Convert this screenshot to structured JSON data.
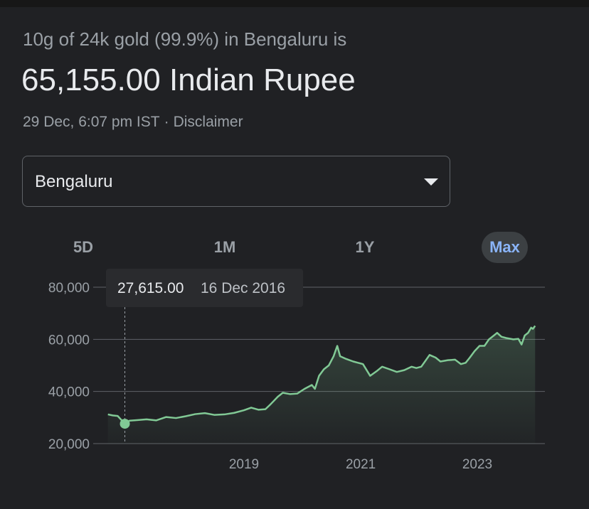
{
  "header": {
    "subtitle": "10g of 24k gold (99.9%) in Bengaluru is",
    "price": "65,155.00 Indian Rupee",
    "timestamp": "29 Dec, 6:07 pm IST",
    "separator": "·",
    "disclaimer": "Disclaimer"
  },
  "location_select": {
    "value": "Bengaluru",
    "icon": "caret-down-icon"
  },
  "range_tabs": [
    {
      "label": "5D",
      "active": false
    },
    {
      "label": "1M",
      "active": false
    },
    {
      "label": "1Y",
      "active": false
    },
    {
      "label": "Max",
      "active": true
    }
  ],
  "tooltip": {
    "value": "27,615.00",
    "date": "16 Dec 2016"
  },
  "colors": {
    "background": "#202124",
    "line": "#81c995",
    "accent": "#8ab4f8",
    "grid": "#5f6368"
  },
  "chart_data": {
    "type": "area",
    "title": "",
    "xlabel": "",
    "ylabel": "",
    "ylim": [
      20000,
      80000
    ],
    "yticks": [
      20000,
      40000,
      60000,
      80000
    ],
    "ytick_labels": [
      "20,000",
      "40,000",
      "60,000",
      "80,000"
    ],
    "xticks": [
      2019,
      2021,
      2023
    ],
    "xtick_labels": [
      "2019",
      "2021",
      "2023"
    ],
    "grid": true,
    "highlight": {
      "x": "2016-12-16",
      "y": 27615
    },
    "series": [
      {
        "points": [
          [
            "2016-09-01",
            31200
          ],
          [
            "2016-10-01",
            30800
          ],
          [
            "2016-11-01",
            30600
          ],
          [
            "2016-12-16",
            27615
          ],
          [
            "2017-01-15",
            28800
          ],
          [
            "2017-03-01",
            29000
          ],
          [
            "2017-05-01",
            29300
          ],
          [
            "2017-07-01",
            28900
          ],
          [
            "2017-09-01",
            30200
          ],
          [
            "2017-11-01",
            29800
          ],
          [
            "2018-01-01",
            30500
          ],
          [
            "2018-03-01",
            31300
          ],
          [
            "2018-05-01",
            31700
          ],
          [
            "2018-07-01",
            31000
          ],
          [
            "2018-09-01",
            31200
          ],
          [
            "2018-11-01",
            31800
          ],
          [
            "2019-01-01",
            32800
          ],
          [
            "2019-02-15",
            33800
          ],
          [
            "2019-04-01",
            33000
          ],
          [
            "2019-05-15",
            33200
          ],
          [
            "2019-06-15",
            35000
          ],
          [
            "2019-08-01",
            38000
          ],
          [
            "2019-09-01",
            39500
          ],
          [
            "2019-10-15",
            39000
          ],
          [
            "2019-12-01",
            39200
          ],
          [
            "2020-01-15",
            41000
          ],
          [
            "2020-03-01",
            42500
          ],
          [
            "2020-03-20",
            41000
          ],
          [
            "2020-04-15",
            46000
          ],
          [
            "2020-05-15",
            48500
          ],
          [
            "2020-06-15",
            50000
          ],
          [
            "2020-07-15",
            53500
          ],
          [
            "2020-08-07",
            57500
          ],
          [
            "2020-08-25",
            53500
          ],
          [
            "2020-10-01",
            52500
          ],
          [
            "2020-11-15",
            51500
          ],
          [
            "2020-12-15",
            51000
          ],
          [
            "2021-01-15",
            50500
          ],
          [
            "2021-03-01",
            46000
          ],
          [
            "2021-04-15",
            48000
          ],
          [
            "2021-05-15",
            49500
          ],
          [
            "2021-07-01",
            48500
          ],
          [
            "2021-08-15",
            47500
          ],
          [
            "2021-10-01",
            48200
          ],
          [
            "2021-11-15",
            49500
          ],
          [
            "2021-12-15",
            49000
          ],
          [
            "2022-01-15",
            49500
          ],
          [
            "2022-03-08",
            54000
          ],
          [
            "2022-04-15",
            53000
          ],
          [
            "2022-05-15",
            51500
          ],
          [
            "2022-07-01",
            52000
          ],
          [
            "2022-08-15",
            52200
          ],
          [
            "2022-09-20",
            50500
          ],
          [
            "2022-10-20",
            51000
          ],
          [
            "2022-11-15",
            53000
          ],
          [
            "2022-12-15",
            55500
          ],
          [
            "2023-01-15",
            57500
          ],
          [
            "2023-02-15",
            57500
          ],
          [
            "2023-03-15",
            60000
          ],
          [
            "2023-04-15",
            61500
          ],
          [
            "2023-05-05",
            62500
          ],
          [
            "2023-06-01",
            61000
          ],
          [
            "2023-07-01",
            60500
          ],
          [
            "2023-08-15",
            60000
          ],
          [
            "2023-09-15",
            60200
          ],
          [
            "2023-10-05",
            58000
          ],
          [
            "2023-10-25",
            61500
          ],
          [
            "2023-11-15",
            62500
          ],
          [
            "2023-12-04",
            64500
          ],
          [
            "2023-12-15",
            64000
          ],
          [
            "2023-12-29",
            65155
          ]
        ]
      }
    ]
  }
}
